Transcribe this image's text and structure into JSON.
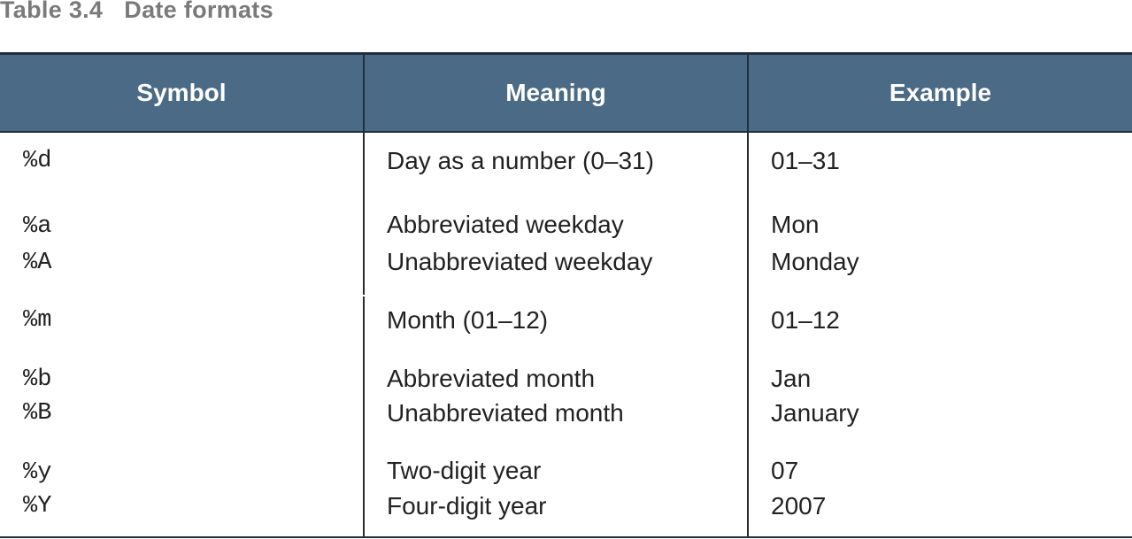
{
  "caption": {
    "number": "Table 3.4",
    "title": "Date formats"
  },
  "table": {
    "headers": {
      "symbol": "Symbol",
      "meaning": "Meaning",
      "example": "Example"
    },
    "rows": [
      {
        "symbol": "%d",
        "meaning": "Day as a number (0–31)",
        "example": "01–31"
      },
      {
        "symbol": "%a",
        "meaning": "Abbreviated weekday",
        "example": "Mon"
      },
      {
        "symbol": "%A",
        "meaning": "Unabbreviated weekday",
        "example": "Monday"
      },
      {
        "symbol": "%m",
        "meaning": "Month (01–12)",
        "example": "01–12"
      },
      {
        "symbol": "%b",
        "meaning": "Abbreviated month",
        "example": "Jan"
      },
      {
        "symbol": "%B",
        "meaning": "Unabbreviated month",
        "example": "January"
      },
      {
        "symbol": "%y",
        "meaning": "Two-digit year",
        "example": "07"
      },
      {
        "symbol": "%Y",
        "meaning": "Four-digit year",
        "example": "2007"
      }
    ]
  }
}
